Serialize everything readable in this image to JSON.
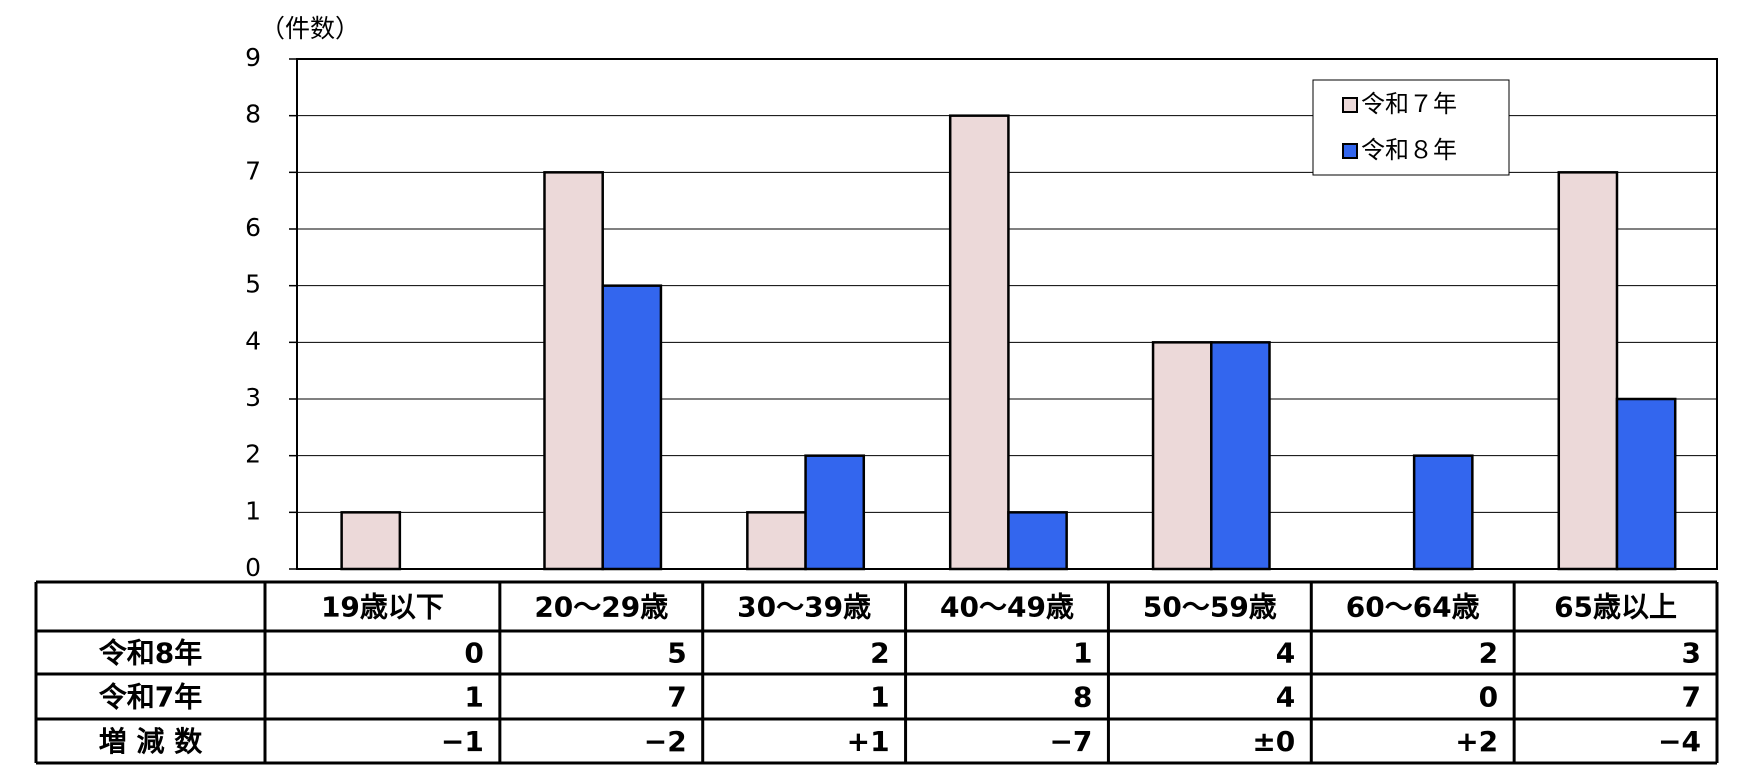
{
  "chart_data": {
    "type": "bar",
    "y_label": "（件数）",
    "categories": [
      "19歳以下",
      "20～29歳",
      "30～39歳",
      "40～49歳",
      "50～59歳",
      "60～64歳",
      "65歳以上"
    ],
    "series": [
      {
        "name": "令和７年",
        "color": "#ecd9d9",
        "values": [
          1,
          7,
          1,
          8,
          4,
          0,
          7
        ]
      },
      {
        "name": "令和８年",
        "color": "#3366ee",
        "values": [
          0,
          5,
          2,
          1,
          4,
          2,
          3
        ]
      }
    ],
    "ylim": [
      0,
      9
    ],
    "yticks": [
      0,
      1,
      2,
      3,
      4,
      5,
      6,
      7,
      8,
      9
    ],
    "grid": true,
    "legend": "upper right",
    "table_row_labels": [
      "令和8年",
      "令和7年",
      "増 減 数"
    ],
    "change": {
      "values": [
        -1,
        -2,
        1,
        -7,
        0,
        2,
        -4
      ],
      "value_labels": [
        "−1",
        "−2",
        "+1",
        "−7",
        "±0",
        "+2",
        "−4"
      ]
    }
  }
}
